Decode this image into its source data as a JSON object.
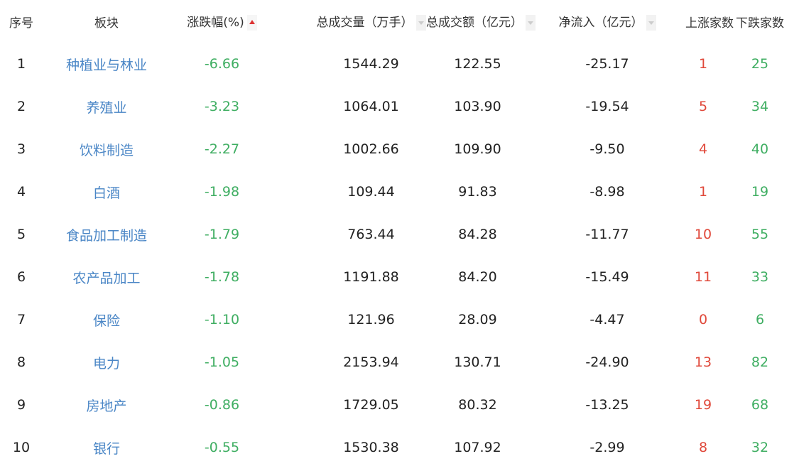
{
  "headers": {
    "index": "序号",
    "sector": "板块",
    "change": "涨跌幅(%)",
    "volume": "总成交量（万手）",
    "amount": "总成交额（亿元）",
    "netflow": "净流入（亿元）",
    "up": "上涨家数",
    "down": "下跌家数"
  },
  "sort": {
    "column": "change",
    "direction": "ascending",
    "active_color": "#dd3333"
  },
  "colors": {
    "sector_link": "#4a86c6",
    "negative": "#3fae62",
    "up_count": "#e0483a",
    "down_count": "#3fae62"
  },
  "rows": [
    {
      "index": "1",
      "sector": "种植业与林业",
      "change": "-6.66",
      "volume": "1544.29",
      "amount": "122.55",
      "netflow": "-25.17",
      "up": "1",
      "down": "25"
    },
    {
      "index": "2",
      "sector": "养殖业",
      "change": "-3.23",
      "volume": "1064.01",
      "amount": "103.90",
      "netflow": "-19.54",
      "up": "5",
      "down": "34"
    },
    {
      "index": "3",
      "sector": "饮料制造",
      "change": "-2.27",
      "volume": "1002.66",
      "amount": "109.90",
      "netflow": "-9.50",
      "up": "4",
      "down": "40"
    },
    {
      "index": "4",
      "sector": "白酒",
      "change": "-1.98",
      "volume": "109.44",
      "amount": "91.83",
      "netflow": "-8.98",
      "up": "1",
      "down": "19"
    },
    {
      "index": "5",
      "sector": "食品加工制造",
      "change": "-1.79",
      "volume": "763.44",
      "amount": "84.28",
      "netflow": "-11.77",
      "up": "10",
      "down": "55"
    },
    {
      "index": "6",
      "sector": "农产品加工",
      "change": "-1.78",
      "volume": "1191.88",
      "amount": "84.20",
      "netflow": "-15.49",
      "up": "11",
      "down": "33"
    },
    {
      "index": "7",
      "sector": "保险",
      "change": "-1.10",
      "volume": "121.96",
      "amount": "28.09",
      "netflow": "-4.47",
      "up": "0",
      "down": "6"
    },
    {
      "index": "8",
      "sector": "电力",
      "change": "-1.05",
      "volume": "2153.94",
      "amount": "130.71",
      "netflow": "-24.90",
      "up": "13",
      "down": "82"
    },
    {
      "index": "9",
      "sector": "房地产",
      "change": "-0.86",
      "volume": "1729.05",
      "amount": "80.32",
      "netflow": "-13.25",
      "up": "19",
      "down": "68"
    },
    {
      "index": "10",
      "sector": "银行",
      "change": "-0.55",
      "volume": "1530.38",
      "amount": "107.92",
      "netflow": "-2.99",
      "up": "8",
      "down": "32"
    }
  ]
}
